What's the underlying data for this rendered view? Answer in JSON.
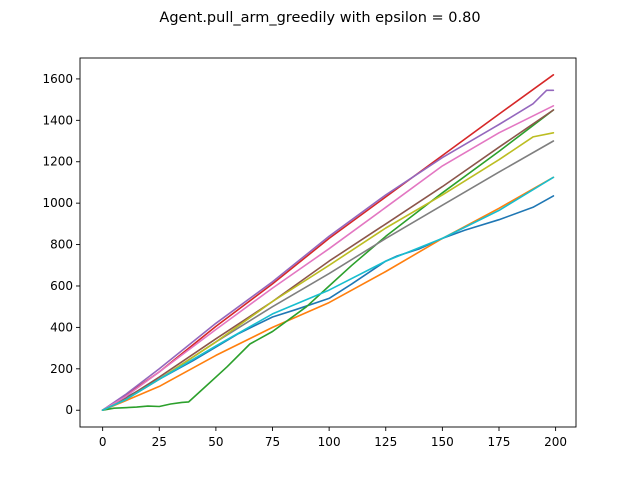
{
  "chart_data": {
    "type": "line",
    "title": "Agent.pull_arm_greedily with epsilon = 0.80",
    "xlabel": "",
    "ylabel": "",
    "xlim": [
      -10,
      209
    ],
    "ylim": [
      -81,
      1701
    ],
    "xticks": [
      0,
      25,
      50,
      75,
      100,
      125,
      150,
      175,
      200
    ],
    "yticks": [
      0,
      200,
      400,
      600,
      800,
      1000,
      1200,
      1400,
      1600
    ],
    "grid": false,
    "legend": "none",
    "series": [
      {
        "color": "#1f77b4",
        "x": [
          0,
          10,
          25,
          40,
          50,
          60,
          75,
          85,
          100,
          110,
          125,
          130,
          140,
          150,
          160,
          175,
          190,
          199
        ],
        "y": [
          0,
          60,
          150,
          240,
          305,
          370,
          450,
          485,
          540,
          610,
          720,
          745,
          780,
          830,
          870,
          920,
          980,
          1035
        ]
      },
      {
        "color": "#ff7f0e",
        "x": [
          0,
          10,
          25,
          50,
          75,
          100,
          125,
          150,
          175,
          199
        ],
        "y": [
          0,
          45,
          115,
          265,
          400,
          520,
          670,
          830,
          975,
          1125
        ]
      },
      {
        "color": "#2ca02c",
        "x": [
          0,
          5,
          15,
          20,
          25,
          30,
          35,
          38,
          45,
          55,
          65,
          75,
          90,
          100,
          110,
          125,
          150,
          175,
          199
        ],
        "y": [
          0,
          10,
          15,
          20,
          18,
          30,
          38,
          40,
          110,
          210,
          320,
          380,
          500,
          600,
          700,
          840,
          1050,
          1250,
          1450
        ]
      },
      {
        "color": "#d62728",
        "x": [
          0,
          10,
          25,
          50,
          75,
          100,
          125,
          150,
          175,
          199
        ],
        "y": [
          0,
          70,
          185,
          405,
          610,
          830,
          1030,
          1230,
          1430,
          1620
        ]
      },
      {
        "color": "#9467bd",
        "x": [
          0,
          10,
          25,
          50,
          75,
          100,
          125,
          150,
          175,
          190,
          196,
          199
        ],
        "y": [
          0,
          75,
          200,
          420,
          620,
          840,
          1040,
          1220,
          1380,
          1480,
          1545,
          1545
        ]
      },
      {
        "color": "#8c564b",
        "x": [
          0,
          10,
          25,
          50,
          75,
          100,
          125,
          150,
          175,
          199
        ],
        "y": [
          0,
          55,
          160,
          345,
          525,
          720,
          900,
          1080,
          1270,
          1450
        ]
      },
      {
        "color": "#e377c2",
        "x": [
          0,
          10,
          25,
          50,
          75,
          100,
          125,
          150,
          175,
          199
        ],
        "y": [
          0,
          65,
          185,
          390,
          590,
          780,
          980,
          1180,
          1340,
          1470
        ]
      },
      {
        "color": "#7f7f7f",
        "x": [
          0,
          10,
          25,
          50,
          75,
          100,
          125,
          150,
          175,
          199
        ],
        "y": [
          0,
          50,
          150,
          330,
          500,
          660,
          830,
          990,
          1150,
          1300
        ]
      },
      {
        "color": "#bcbd22",
        "x": [
          0,
          10,
          25,
          50,
          75,
          100,
          125,
          150,
          175,
          190,
          199
        ],
        "y": [
          0,
          50,
          150,
          330,
          525,
          700,
          880,
          1040,
          1210,
          1320,
          1340
        ]
      },
      {
        "color": "#17becf",
        "x": [
          0,
          10,
          25,
          50,
          75,
          100,
          125,
          150,
          175,
          199
        ],
        "y": [
          0,
          50,
          150,
          310,
          465,
          580,
          720,
          830,
          965,
          1125
        ]
      }
    ]
  }
}
